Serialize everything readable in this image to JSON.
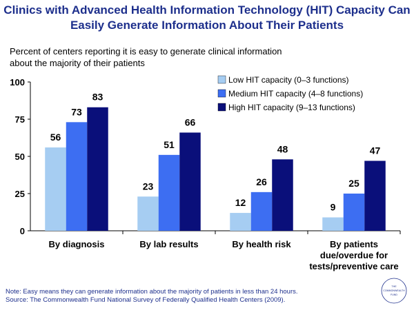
{
  "title": {
    "line1": "Clinics with Advanced Health Information Technology (HIT) Capacity Can",
    "line2": "Easily Generate Information About Their Patients"
  },
  "subtitle": {
    "line1": "Percent of centers reporting it is easy to generate clinical information",
    "line2": "about the majority of their patients"
  },
  "chart_data": {
    "type": "bar",
    "categories": [
      [
        "By diagnosis"
      ],
      [
        "By lab results"
      ],
      [
        "By health risk"
      ],
      [
        "By patients",
        "due/overdue for",
        "tests/preventive care"
      ]
    ],
    "series": [
      {
        "name": "Low HIT capacity (0–3 functions)",
        "color": "#a6cdf2",
        "values": [
          56,
          23,
          12,
          9
        ]
      },
      {
        "name": "Medium HIT capacity (4–8 functions)",
        "color": "#3d6ef2",
        "values": [
          73,
          51,
          26,
          25
        ]
      },
      {
        "name": "High HIT capacity (9–13 functions)",
        "color": "#0a0f7a",
        "values": [
          83,
          66,
          48,
          47
        ]
      }
    ],
    "ylim": [
      0,
      100
    ],
    "yticks": [
      0,
      25,
      50,
      75,
      100
    ],
    "xlabel": "",
    "ylabel": "",
    "legend_position": "top-right",
    "grid": false
  },
  "footnote": {
    "line1": "Note: Easy means they can generate information about the majority of patients in less than 24 hours.",
    "line2": "Source: The Commonwealth Fund National Survey of Federally Qualified Health Centers (2009)."
  },
  "logo": {
    "line1": "THE",
    "line2": "COMMONWEALTH",
    "line3": "FUND"
  }
}
